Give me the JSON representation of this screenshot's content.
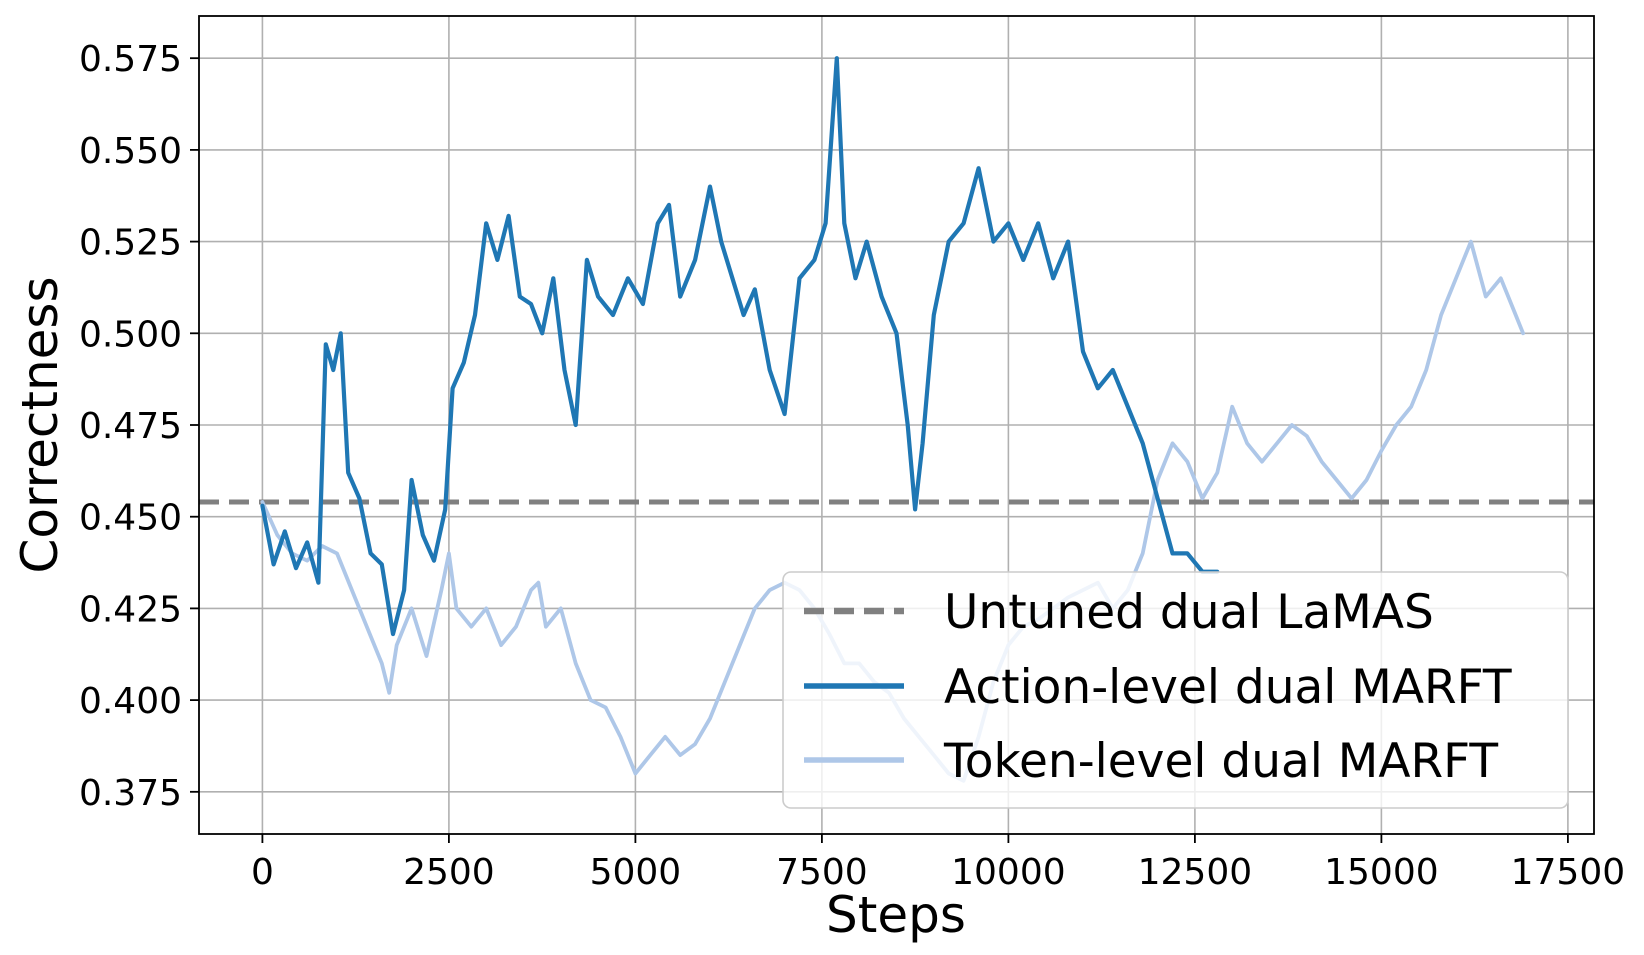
{
  "chart_data": {
    "type": "line",
    "xlabel": "Steps",
    "ylabel": "Correctness",
    "xlim": [
      -850,
      17850
    ],
    "ylim": [
      0.3635,
      0.5865
    ],
    "xticks": [
      0,
      2500,
      5000,
      7500,
      10000,
      12500,
      15000,
      17500
    ],
    "xtick_labels": [
      "0",
      "2500",
      "5000",
      "7500",
      "10000",
      "12500",
      "15000",
      "17500"
    ],
    "yticks": [
      0.375,
      0.4,
      0.425,
      0.45,
      0.475,
      0.5,
      0.525,
      0.55,
      0.575
    ],
    "ytick_labels": [
      "0.375",
      "0.400",
      "0.425",
      "0.450",
      "0.475",
      "0.500",
      "0.525",
      "0.550",
      "0.575"
    ],
    "grid": true,
    "legend_position": "lower-right",
    "series": [
      {
        "name": "Untuned dual LaMAS",
        "style": "dashed",
        "color": "#808080",
        "y": 0.454
      },
      {
        "name": "Action-level dual MARFT",
        "style": "solid",
        "color": "#1f77b4",
        "x": [
          0,
          150,
          300,
          450,
          600,
          750,
          850,
          950,
          1050,
          1150,
          1300,
          1450,
          1600,
          1750,
          1900,
          2000,
          2150,
          2300,
          2450,
          2550,
          2700,
          2850,
          3000,
          3150,
          3300,
          3450,
          3600,
          3750,
          3900,
          4050,
          4200,
          4350,
          4500,
          4700,
          4900,
          5100,
          5300,
          5450,
          5600,
          5800,
          6000,
          6150,
          6300,
          6450,
          6600,
          6800,
          7000,
          7200,
          7400,
          7550,
          7700,
          7800,
          7950,
          8100,
          8300,
          8500,
          8650,
          8750,
          8850,
          9000,
          9200,
          9400,
          9600,
          9800,
          10000,
          10200,
          10400,
          10600,
          10800,
          11000,
          11200,
          11400,
          11600,
          11800,
          12000,
          12200,
          12400,
          12600,
          12800
        ],
        "y": [
          0.453,
          0.437,
          0.446,
          0.436,
          0.443,
          0.432,
          0.497,
          0.49,
          0.5,
          0.462,
          0.455,
          0.44,
          0.437,
          0.418,
          0.43,
          0.46,
          0.445,
          0.438,
          0.452,
          0.485,
          0.492,
          0.505,
          0.53,
          0.52,
          0.532,
          0.51,
          0.508,
          0.5,
          0.515,
          0.49,
          0.475,
          0.52,
          0.51,
          0.505,
          0.515,
          0.508,
          0.53,
          0.535,
          0.51,
          0.52,
          0.54,
          0.525,
          0.515,
          0.505,
          0.512,
          0.49,
          0.478,
          0.515,
          0.52,
          0.53,
          0.575,
          0.53,
          0.515,
          0.525,
          0.51,
          0.5,
          0.475,
          0.452,
          0.47,
          0.505,
          0.525,
          0.53,
          0.545,
          0.525,
          0.53,
          0.52,
          0.53,
          0.515,
          0.525,
          0.495,
          0.485,
          0.49,
          0.48,
          0.47,
          0.455,
          0.44,
          0.44,
          0.435,
          0.435
        ]
      },
      {
        "name": "Token-level dual MARFT",
        "style": "solid",
        "color": "#aec7e8",
        "x": [
          0,
          200,
          400,
          600,
          800,
          1000,
          1200,
          1400,
          1600,
          1700,
          1800,
          2000,
          2200,
          2400,
          2500,
          2600,
          2800,
          3000,
          3200,
          3400,
          3600,
          3700,
          3800,
          4000,
          4200,
          4400,
          4600,
          4800,
          5000,
          5200,
          5400,
          5600,
          5800,
          6000,
          6200,
          6400,
          6600,
          6800,
          7000,
          7200,
          7400,
          7600,
          7800,
          8000,
          8200,
          8400,
          8600,
          8800,
          9000,
          9200,
          9400,
          9600,
          9800,
          10000,
          10200,
          10400,
          10600,
          10800,
          11000,
          11200,
          11400,
          11600,
          11800,
          12000,
          12200,
          12400,
          12600,
          12800,
          13000,
          13200,
          13400,
          13600,
          13800,
          14000,
          14200,
          14400,
          14600,
          14800,
          15000,
          15200,
          15400,
          15600,
          15800,
          16000,
          16200,
          16400,
          16600,
          16800,
          16900
        ],
        "y": [
          0.454,
          0.445,
          0.44,
          0.438,
          0.442,
          0.44,
          0.43,
          0.42,
          0.41,
          0.402,
          0.415,
          0.425,
          0.412,
          0.43,
          0.44,
          0.425,
          0.42,
          0.425,
          0.415,
          0.42,
          0.43,
          0.432,
          0.42,
          0.425,
          0.41,
          0.4,
          0.398,
          0.39,
          0.38,
          0.385,
          0.39,
          0.385,
          0.388,
          0.395,
          0.405,
          0.415,
          0.425,
          0.43,
          0.432,
          0.43,
          0.425,
          0.418,
          0.41,
          0.41,
          0.405,
          0.402,
          0.395,
          0.39,
          0.385,
          0.38,
          0.378,
          0.39,
          0.405,
          0.415,
          0.42,
          0.422,
          0.425,
          0.428,
          0.43,
          0.432,
          0.425,
          0.43,
          0.44,
          0.46,
          0.47,
          0.465,
          0.455,
          0.462,
          0.48,
          0.47,
          0.465,
          0.47,
          0.475,
          0.472,
          0.465,
          0.46,
          0.455,
          0.46,
          0.468,
          0.475,
          0.48,
          0.49,
          0.505,
          0.515,
          0.525,
          0.51,
          0.515,
          0.505,
          0.5
        ]
      }
    ]
  }
}
